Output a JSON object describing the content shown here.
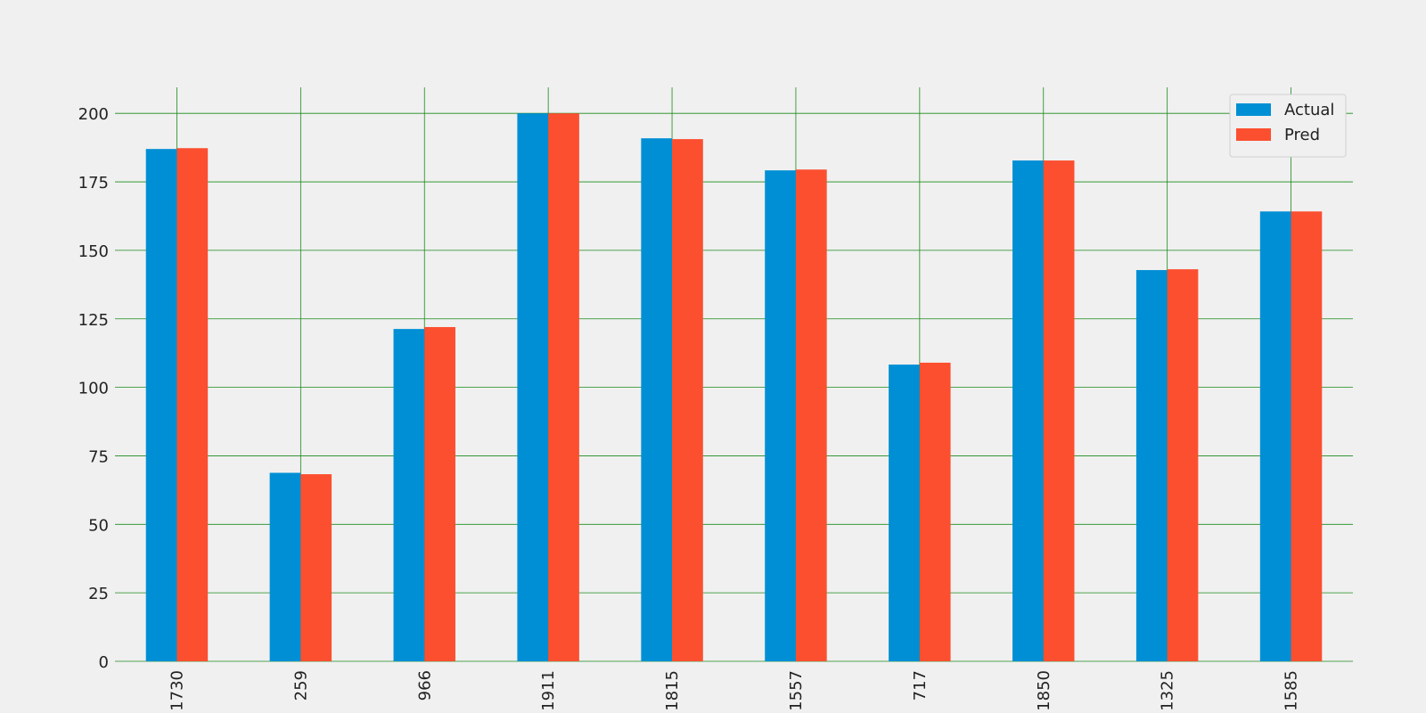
{
  "chart_data": {
    "type": "bar",
    "categories": [
      "1730",
      "259",
      "966",
      "1911",
      "1815",
      "1557",
      "717",
      "1850",
      "1325",
      "1585"
    ],
    "series": [
      {
        "name": "Actual",
        "color": "#008fd5",
        "values": [
          187.0,
          68.8,
          121.3,
          200.0,
          190.9,
          179.2,
          108.3,
          182.8,
          142.8,
          164.2
        ]
      },
      {
        "name": "Pred",
        "color": "#fc4f30",
        "values": [
          187.3,
          68.3,
          122.0,
          200.0,
          190.6,
          179.5,
          109.0,
          182.8,
          143.1,
          164.2
        ]
      }
    ],
    "ylim": [
      0,
      209.5
    ],
    "yticks": [
      0,
      25,
      50,
      75,
      100,
      125,
      150,
      175,
      200
    ],
    "grid": true,
    "grid_color": "#1a8a1a",
    "legend": "upper right"
  }
}
